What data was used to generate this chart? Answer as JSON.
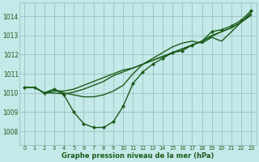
{
  "background_color": "#c5e8e8",
  "grid_color": "#a0c8c8",
  "line_color": "#1a5c1a",
  "xlabel": "Graphe pression niveau de la mer (hPa)",
  "xlim": [
    -0.5,
    23.5
  ],
  "ylim": [
    1007.3,
    1014.7
  ],
  "yticks": [
    1008,
    1009,
    1010,
    1011,
    1012,
    1013,
    1014
  ],
  "xticks": [
    0,
    1,
    2,
    3,
    4,
    5,
    6,
    7,
    8,
    9,
    10,
    11,
    12,
    13,
    14,
    15,
    16,
    17,
    18,
    19,
    20,
    21,
    22,
    23
  ],
  "lines": [
    {
      "x": [
        0,
        1,
        2,
        3,
        4,
        5,
        6,
        7,
        8,
        9,
        10,
        11,
        12,
        13,
        14,
        15,
        16,
        17,
        18,
        19,
        20,
        21,
        22,
        23
      ],
      "y": [
        1010.3,
        1010.3,
        1010.0,
        1010.2,
        1009.9,
        1009.0,
        1008.4,
        1008.2,
        1008.2,
        1008.5,
        1009.3,
        1010.5,
        1011.1,
        1011.5,
        1011.8,
        1012.1,
        1012.2,
        1012.5,
        1012.7,
        1013.2,
        1013.3,
        1013.5,
        1013.8,
        1014.3
      ],
      "marker": true,
      "lw": 1.0
    },
    {
      "x": [
        0,
        1,
        2,
        3,
        4,
        5,
        6,
        7,
        8,
        9,
        10,
        11,
        12,
        13,
        14,
        15,
        16,
        17,
        18,
        19,
        20,
        21,
        22,
        23
      ],
      "y": [
        1010.3,
        1010.3,
        1010.0,
        1010.1,
        1010.1,
        1010.2,
        1010.4,
        1010.6,
        1010.8,
        1011.0,
        1011.2,
        1011.3,
        1011.5,
        1011.7,
        1011.9,
        1012.1,
        1012.3,
        1012.5,
        1012.7,
        1013.0,
        1013.2,
        1013.4,
        1013.7,
        1014.05
      ],
      "marker": false,
      "lw": 1.0
    },
    {
      "x": [
        0,
        1,
        2,
        3,
        4,
        5,
        6,
        7,
        8,
        9,
        10,
        11,
        12,
        13,
        14,
        15,
        16,
        17,
        18,
        19,
        20,
        21,
        22,
        23
      ],
      "y": [
        1010.3,
        1010.3,
        1010.0,
        1010.0,
        1009.95,
        1010.05,
        1010.2,
        1010.4,
        1010.6,
        1010.9,
        1011.1,
        1011.3,
        1011.5,
        1011.7,
        1011.9,
        1012.1,
        1012.3,
        1012.5,
        1012.7,
        1012.95,
        1013.2,
        1013.4,
        1013.7,
        1014.1
      ],
      "marker": false,
      "lw": 1.0
    },
    {
      "x": [
        0,
        1,
        2,
        3,
        4,
        5,
        6,
        7,
        8,
        9,
        10,
        11,
        12,
        13,
        14,
        15,
        16,
        17,
        18,
        19,
        20,
        21,
        22,
        23
      ],
      "y": [
        1010.3,
        1010.3,
        1010.0,
        1010.2,
        1010.0,
        1009.9,
        1009.8,
        1009.8,
        1009.9,
        1010.1,
        1010.4,
        1011.0,
        1011.5,
        1011.8,
        1012.1,
        1012.4,
        1012.6,
        1012.7,
        1012.6,
        1012.9,
        1012.7,
        1013.2,
        1013.7,
        1014.2
      ],
      "marker": false,
      "lw": 1.0
    }
  ],
  "ytick_fontsize": 5.5,
  "xtick_fontsize": 4.8,
  "xlabel_fontsize": 6.0
}
